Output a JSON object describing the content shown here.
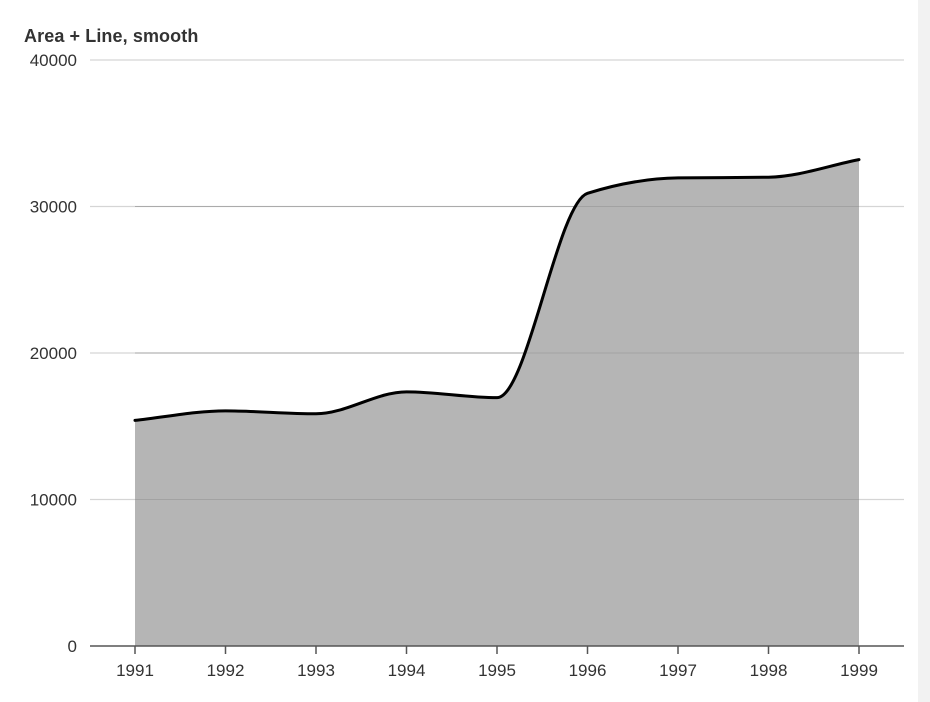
{
  "chart_data": {
    "type": "area",
    "title": "Area + Line, smooth",
    "xlabel": "",
    "ylabel": "",
    "categories": [
      "1991",
      "1992",
      "1993",
      "1994",
      "1995",
      "1996",
      "1997",
      "1998",
      "1999"
    ],
    "series": [
      {
        "values": [
          15400,
          16050,
          15850,
          17350,
          16950,
          30900,
          31950,
          32000,
          33200
        ]
      }
    ],
    "ylim": [
      0,
      40000
    ],
    "yticks": [
      "0",
      "10000",
      "20000",
      "30000",
      "40000"
    ],
    "grid": true,
    "legend": "none",
    "smooth": true,
    "colors": {
      "area_fill": "#b5b5b5",
      "line": "#000000",
      "grid": "#d5d5d5",
      "axis": "#555555"
    }
  }
}
